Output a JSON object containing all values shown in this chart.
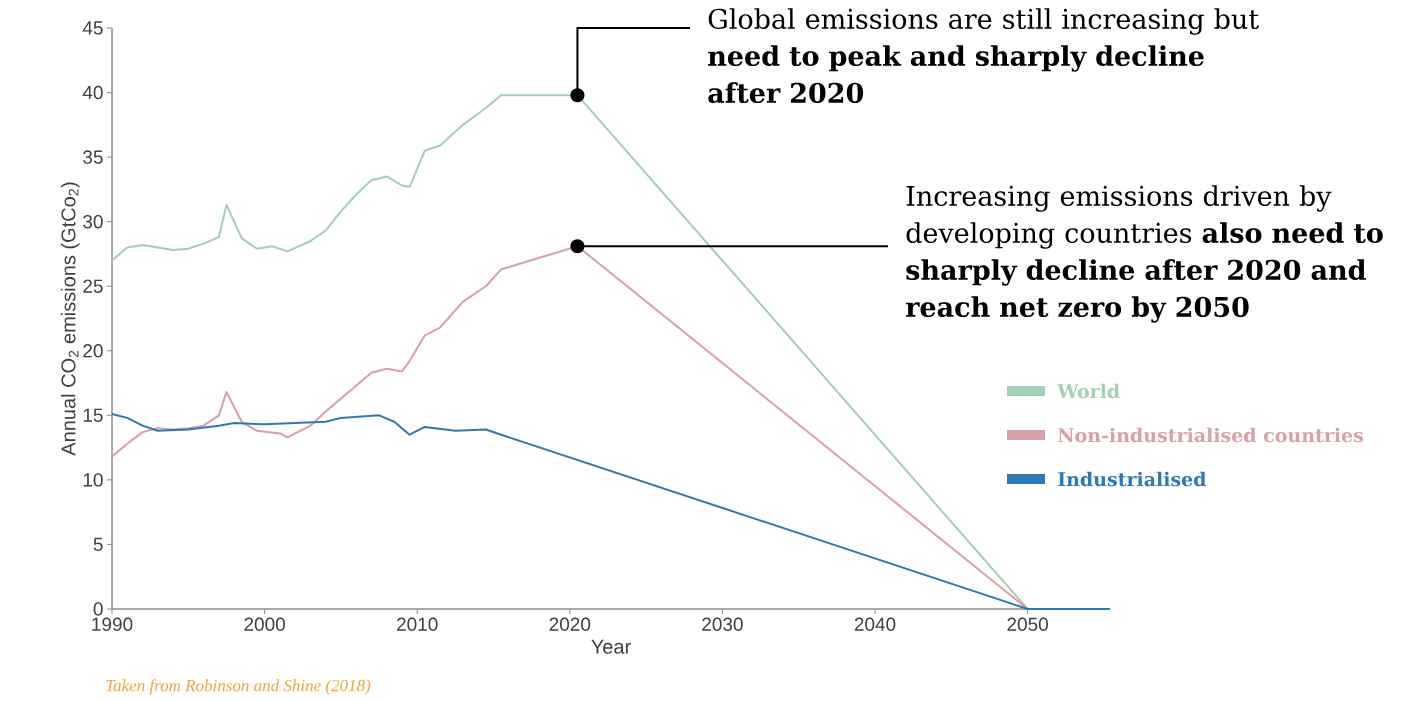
{
  "chart_data": {
    "type": "line",
    "xlabel": "Year",
    "ylabel": "Annual CO$_{2}$ emissions (GtCo$_{2}$)",
    "xlim": [
      1990,
      2055.4
    ],
    "ylim": [
      0,
      45
    ],
    "xticks": [
      1990,
      2000,
      2010,
      2020,
      2030,
      2040,
      2050
    ],
    "yticks": [
      0,
      5,
      10,
      15,
      20,
      25,
      30,
      35,
      40,
      45
    ],
    "legend": "right",
    "grid": false,
    "marker": "none",
    "line_style": "solid",
    "series": [
      {
        "name": "World",
        "color": "#a3cfb4",
        "x": [
          1990,
          1991,
          1992,
          1993,
          1994,
          1995,
          1996,
          1997,
          1997.5,
          1998.5,
          1999.5,
          2000.5,
          2001.5,
          2003,
          2004,
          2005,
          2006,
          2007,
          2008,
          2009,
          2009.5,
          2010.5,
          2011.5,
          2013,
          2014.5,
          2015.5,
          2020.5,
          2050,
          2055.4
        ],
        "values": [
          27,
          28,
          28.2,
          28,
          27.8,
          27.9,
          28.3,
          28.8,
          31.3,
          28.7,
          27.9,
          28.1,
          27.7,
          28.5,
          29.3,
          30.8,
          32.1,
          33.2,
          33.5,
          32.8,
          32.7,
          35.5,
          35.9,
          37.5,
          38.8,
          39.8,
          39.8,
          0,
          0
        ]
      },
      {
        "name": "Non-industrialised countries",
        "color": "#d9a0a8",
        "x": [
          1990,
          1991,
          1992,
          1993,
          1994,
          1995,
          1996,
          1997,
          1997.5,
          1998.5,
          1999.5,
          2001,
          2001.5,
          2003,
          2004,
          2005,
          2006,
          2007,
          2008,
          2009,
          2009.5,
          2010.5,
          2011.5,
          2013,
          2014.5,
          2015.5,
          2018,
          2020.5,
          2050
        ],
        "values": [
          11.8,
          12.8,
          13.7,
          14,
          13.9,
          14,
          14.2,
          15,
          16.8,
          14.5,
          13.8,
          13.6,
          13.3,
          14.2,
          15.3,
          16.3,
          17.3,
          18.3,
          18.6,
          18.4,
          19.2,
          21.2,
          21.8,
          23.8,
          25,
          26.3,
          27.2,
          28.1,
          0
        ]
      },
      {
        "name": "Industrialised",
        "color": "#2f78b4",
        "x": [
          1990,
          1991,
          1992,
          1993,
          1995,
          1997,
          1998,
          2000,
          2002,
          2004,
          2005,
          2007.5,
          2008.5,
          2009.5,
          2010.5,
          2012.5,
          2014.5,
          2015.5,
          2050,
          2055.4
        ],
        "values": [
          15.1,
          14.8,
          14.2,
          13.8,
          13.9,
          14.2,
          14.4,
          14.3,
          14.4,
          14.5,
          14.8,
          15,
          14.5,
          13.5,
          14.1,
          13.8,
          13.9,
          13.5,
          0,
          0
        ]
      }
    ],
    "annotations": [
      {
        "text": "Global emissions are still increasing but **need to peak and sharply decline after 2020**",
        "x": 2020.5,
        "y": 39.8
      },
      {
        "text": "Increasing emissions driven by developing countries **also need to sharply decline after 2020 and reach net zero by 2050**",
        "x": 2020.5,
        "y": 28.1
      },
      "*Taken from Robinson and Shine (2018)*"
    ]
  }
}
